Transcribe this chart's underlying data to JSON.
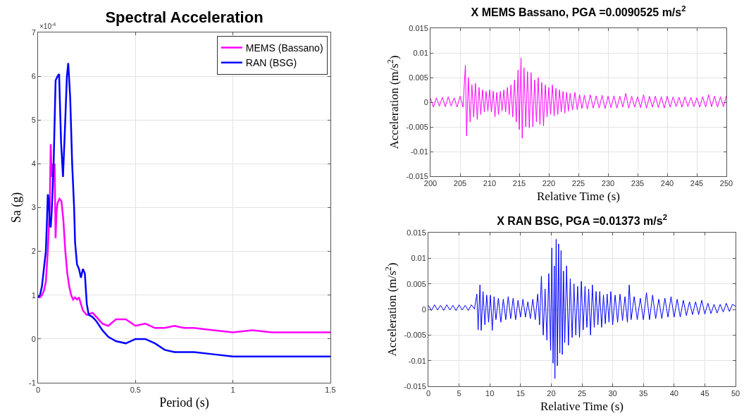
{
  "chart_data": [
    {
      "type": "line",
      "title": "Spectral Acceleration",
      "xlabel": "Period (s)",
      "ylabel": "Sa (g)",
      "annotations": [
        "×10$^{-4}$"
      ],
      "xlim": [
        0,
        1.5
      ],
      "xticks": [
        0,
        0.5,
        1,
        1.5
      ],
      "ylim": [
        -1,
        7
      ],
      "yticks": [
        -1,
        0,
        1,
        2,
        3,
        4,
        5,
        6,
        7
      ],
      "grid": true,
      "legend": "top right",
      "series": [
        {
          "name": "MEMS (Bassano)",
          "color": "#ff00ff",
          "x": [
            0,
            0.01,
            0.02,
            0.03,
            0.04,
            0.05,
            0.055,
            0.06,
            0.065,
            0.07,
            0.075,
            0.08,
            0.085,
            0.09,
            0.095,
            0.1,
            0.11,
            0.12,
            0.13,
            0.14,
            0.15,
            0.16,
            0.17,
            0.18,
            0.19,
            0.2,
            0.21,
            0.22,
            0.23,
            0.25,
            0.28,
            0.3,
            0.33,
            0.36,
            0.4,
            0.45,
            0.5,
            0.55,
            0.6,
            0.65,
            0.7,
            0.75,
            0.8,
            0.9,
            1.0,
            1.1,
            1.2,
            1.3,
            1.4,
            1.5
          ],
          "values": [
            0.95,
            0.95,
            1,
            1.1,
            1.3,
            2,
            2.5,
            3,
            4.45,
            3.7,
            4,
            3.7,
            4,
            2.3,
            2.9,
            3.1,
            3.2,
            3.15,
            2.7,
            2,
            1.5,
            1.2,
            1,
            0.9,
            0.95,
            0.9,
            0.95,
            0.8,
            0.65,
            0.55,
            0.6,
            0.5,
            0.35,
            0.3,
            0.45,
            0.45,
            0.3,
            0.35,
            0.25,
            0.25,
            0.3,
            0.25,
            0.25,
            0.2,
            0.15,
            0.2,
            0.15,
            0.15,
            0.15,
            0.15
          ]
        },
        {
          "name": "RAN (BSG)",
          "color": "#0000ff",
          "x": [
            0,
            0.01,
            0.02,
            0.03,
            0.04,
            0.045,
            0.05,
            0.055,
            0.06,
            0.065,
            0.07,
            0.08,
            0.09,
            0.1,
            0.108,
            0.118,
            0.128,
            0.138,
            0.148,
            0.155,
            0.165,
            0.175,
            0.185,
            0.19,
            0.2,
            0.21,
            0.22,
            0.23,
            0.24,
            0.25,
            0.26,
            0.28,
            0.3,
            0.33,
            0.36,
            0.4,
            0.45,
            0.5,
            0.55,
            0.6,
            0.65,
            0.7,
            0.8,
            0.9,
            1.0,
            1.1,
            1.3,
            1.5
          ],
          "values": [
            0.95,
            1,
            1.2,
            1.6,
            2,
            2.6,
            3.3,
            3.2,
            2.6,
            2.55,
            2.9,
            4,
            5.9,
            6,
            6.05,
            4.5,
            3.7,
            4.8,
            6,
            6.3,
            5.5,
            4,
            3,
            2.2,
            1.7,
            1.6,
            1.4,
            1.6,
            1.5,
            0.8,
            0.55,
            0.5,
            0.4,
            0.2,
            0.05,
            -0.05,
            -0.1,
            0,
            0,
            -0.1,
            -0.25,
            -0.3,
            -0.3,
            -0.35,
            -0.4,
            -0.4,
            -0.4,
            -0.4
          ]
        }
      ]
    },
    {
      "type": "line",
      "title": "X MEMS Bassano, PGA =0.0090525 m/s$^{2}$",
      "xlabel": "Relative Time (s)",
      "ylabel": "Acceleration (m/s$^{2}$)",
      "xlim": [
        200,
        250
      ],
      "xticks": [
        200,
        205,
        210,
        215,
        220,
        225,
        230,
        235,
        240,
        245,
        250
      ],
      "ylim": [
        -0.015,
        0.015
      ],
      "yticks": [
        -0.015,
        -0.01,
        -0.005,
        0,
        0.005,
        0.01,
        0.015
      ],
      "grid": true,
      "series": [
        {
          "color": "#ff00ff",
          "x": [
            200,
            200.5,
            201,
            201.5,
            202,
            202.5,
            203,
            203.5,
            204,
            204.5,
            205,
            205.5,
            205.9,
            206.1,
            206.4,
            206.7,
            207,
            207.3,
            207.6,
            207.9,
            208.2,
            208.5,
            208.8,
            209.1,
            209.4,
            209.7,
            210,
            210.3,
            210.6,
            210.9,
            211.2,
            211.5,
            211.8,
            212.1,
            212.4,
            212.7,
            213,
            213.3,
            213.6,
            213.9,
            214.2,
            214.5,
            214.8,
            215,
            215.3,
            215.5,
            215.8,
            216.1,
            216.4,
            216.7,
            217,
            217.3,
            217.6,
            217.9,
            218.2,
            218.5,
            218.8,
            219.1,
            219.4,
            219.7,
            220,
            220.3,
            220.6,
            220.9,
            221.2,
            221.5,
            221.8,
            222.1,
            222.4,
            222.7,
            223,
            223.3,
            223.6,
            224,
            224.4,
            224.8,
            225.2,
            225.6,
            226,
            226.5,
            227,
            227.5,
            228,
            228.5,
            229,
            229.5,
            230,
            230.5,
            231,
            231.5,
            232,
            232.5,
            233,
            233.5,
            234,
            234.5,
            235,
            235.5,
            236,
            236.5,
            237,
            237.5,
            238,
            238.5,
            239,
            239.5,
            240,
            240.5,
            241,
            241.5,
            242,
            242.5,
            243,
            243.5,
            244,
            244.5,
            245,
            245.5,
            246,
            246.5,
            247,
            247.5,
            248,
            248.5,
            249,
            249.5,
            250
          ],
          "values": [
            0.0008,
            -0.001,
            0.0009,
            -0.0008,
            0.001,
            -0.0009,
            0.0011,
            -0.0008,
            0.0009,
            -0.001,
            0.0012,
            -0.001,
            0.0075,
            -0.0068,
            0.005,
            -0.004,
            0.0035,
            -0.003,
            0.0038,
            -0.0035,
            0.003,
            -0.0025,
            0.0025,
            -0.002,
            0.0022,
            -0.0018,
            0.0025,
            -0.002,
            0.0022,
            -0.003,
            0.002,
            -0.0025,
            0.0022,
            -0.0018,
            0.0025,
            -0.002,
            0.003,
            -0.0025,
            0.0035,
            -0.003,
            0.0045,
            -0.004,
            0.0065,
            -0.0055,
            0.009,
            -0.0073,
            0.007,
            -0.005,
            0.0062,
            -0.0052,
            0.006,
            -0.005,
            0.0045,
            -0.004,
            0.005,
            -0.0045,
            0.004,
            -0.0048,
            0.0035,
            -0.003,
            0.003,
            -0.0025,
            0.0035,
            -0.0028,
            0.0028,
            -0.0025,
            0.0025,
            -0.002,
            0.0022,
            -0.0022,
            0.002,
            -0.0018,
            0.0018,
            -0.0016,
            0.002,
            -0.0015,
            0.0015,
            -0.0013,
            0.0014,
            -0.0014,
            0.0015,
            -0.0012,
            0.0013,
            -0.0012,
            0.0014,
            -0.0013,
            0.0012,
            -0.0011,
            0.0013,
            -0.0012,
            0.0012,
            -0.001,
            0.0018,
            -0.0012,
            0.0012,
            -0.001,
            0.0011,
            -0.0011,
            0.0015,
            -0.0012,
            0.0012,
            -0.001,
            0.0012,
            -0.0011,
            0.0011,
            -0.0012,
            0.0012,
            -0.001,
            0.0011,
            -0.0009,
            0.001,
            -0.001,
            0.0011,
            -0.0009,
            0.001,
            -0.0009,
            0.0009,
            -0.001,
            0.0011,
            -0.001,
            0.0015,
            -0.0009,
            0.0012,
            -0.001,
            0.0011,
            -0.0009,
            0.0013
          ]
        }
      ]
    },
    {
      "type": "line",
      "title": "X RAN BSG, PGA =0.01373 m/s$^{2}$",
      "xlabel": "Relative Time (s)",
      "ylabel": "Acceleration (m/s$^{2}$)",
      "xlim": [
        0,
        50
      ],
      "xticks": [
        0,
        5,
        10,
        15,
        20,
        25,
        30,
        35,
        40,
        45,
        50
      ],
      "ylim": [
        -0.015,
        0.015
      ],
      "yticks": [
        -0.015,
        -0.01,
        -0.005,
        0,
        0.005,
        0.01,
        0.015
      ],
      "grid": true,
      "series": [
        {
          "color": "#0000ff",
          "x": [
            0,
            0.5,
            1,
            1.5,
            2,
            2.5,
            3,
            3.5,
            4,
            4.5,
            5,
            5.5,
            6,
            6.5,
            7,
            7.5,
            7.9,
            8.1,
            8.4,
            8.6,
            8.9,
            9.2,
            9.5,
            9.8,
            10.1,
            10.4,
            10.7,
            11,
            11.4,
            11.8,
            12.2,
            12.6,
            13,
            13.4,
            13.8,
            14.2,
            14.6,
            15,
            15.4,
            15.8,
            16.2,
            16.6,
            17,
            17.4,
            17.8,
            18.1,
            18.4,
            18.7,
            19,
            19.3,
            19.6,
            19.9,
            20.1,
            20.3,
            20.5,
            20.6,
            20.8,
            21,
            21.2,
            21.4,
            21.6,
            21.8,
            22,
            22.2,
            22.5,
            22.8,
            23.1,
            23.4,
            23.7,
            24,
            24.3,
            24.6,
            24.9,
            25.2,
            25.5,
            25.8,
            26.1,
            26.4,
            26.7,
            27,
            27.3,
            27.6,
            27.9,
            28.2,
            28.5,
            28.8,
            29.1,
            29.4,
            29.7,
            30,
            30.4,
            30.8,
            31.2,
            31.6,
            32,
            32.4,
            32.7,
            33,
            33.5,
            34,
            34.5,
            35,
            35.5,
            36,
            36.5,
            37,
            37.5,
            38,
            38.5,
            39,
            39.5,
            40,
            40.5,
            41,
            41.5,
            42,
            42.5,
            43,
            43.5,
            44,
            44.5,
            45,
            45.5,
            46,
            46.5,
            47,
            47.5,
            48,
            48.5,
            49,
            49.5,
            50
          ],
          "values": [
            0.0008,
            -0.0002,
            0.0009,
            -0.0001,
            0.0008,
            -0.0002,
            0.0009,
            -0.0001,
            0.0008,
            -0.0002,
            0.0009,
            -0.0001,
            0.0008,
            -0.0002,
            0.0009,
            0.0001,
            0.003,
            -0.004,
            0.0048,
            -0.0041,
            0.0035,
            -0.003,
            0.0028,
            -0.0025,
            0.0028,
            -0.0041,
            0.0025,
            -0.002,
            0.0022,
            -0.0025,
            0.002,
            -0.002,
            0.0025,
            -0.0018,
            0.0022,
            -0.002,
            0.0018,
            -0.0015,
            0.002,
            -0.0015,
            0.0015,
            -0.0018,
            0.002,
            -0.002,
            0.003,
            -0.003,
            0.0065,
            -0.005,
            0.004,
            -0.006,
            0.007,
            -0.008,
            0.012,
            -0.0105,
            0.0085,
            -0.0135,
            0.0137,
            -0.011,
            0.0128,
            -0.0085,
            0.0115,
            -0.0088,
            0.0075,
            -0.0065,
            0.0085,
            -0.007,
            0.006,
            -0.0055,
            0.005,
            -0.005,
            0.0045,
            -0.0055,
            0.0055,
            -0.004,
            0.0045,
            -0.0035,
            0.004,
            -0.005,
            0.0048,
            -0.0035,
            0.0035,
            -0.003,
            0.0035,
            -0.0035,
            0.0028,
            -0.0028,
            0.003,
            -0.0025,
            0.0035,
            -0.003,
            0.0028,
            -0.0025,
            0.003,
            -0.0022,
            0.0025,
            -0.0025,
            0.0048,
            -0.002,
            0.0025,
            -0.002,
            0.0022,
            -0.002,
            0.0033,
            -0.002,
            0.0028,
            -0.0018,
            0.002,
            -0.0018,
            0.0022,
            -0.0015,
            0.0025,
            -0.0015,
            0.002,
            -0.0015,
            0.0018,
            -0.0012,
            0.0015,
            -0.001,
            0.0015,
            -0.001,
            0.0018,
            -0.0009,
            0.0012,
            -0.0008,
            0.001,
            -0.0007,
            0.001,
            -0.0005,
            0.0012,
            -0.0004,
            0.001,
            0.0006
          ]
        }
      ]
    }
  ]
}
